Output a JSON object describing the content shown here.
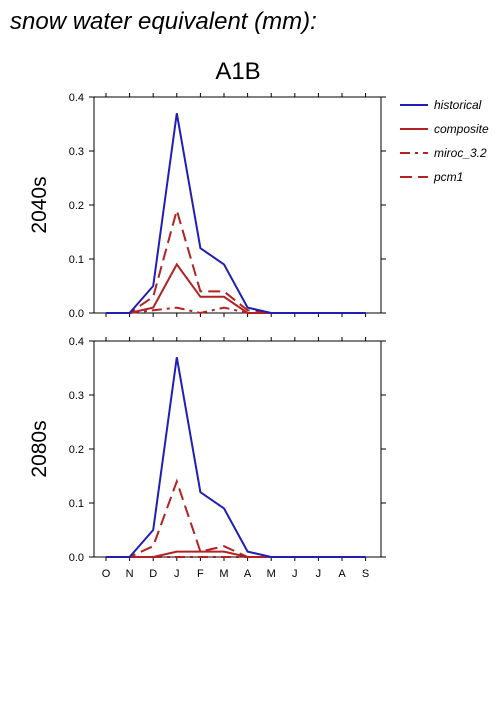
{
  "title": "snow water equivalent (mm):",
  "scenario": "A1B",
  "legend": {
    "items": [
      {
        "label": "historical",
        "color": "#1f1fb4",
        "dash": "solid"
      },
      {
        "label": "composite",
        "color": "#b22222",
        "dash": "solid"
      },
      {
        "label": "miroc_3.2",
        "color": "#b22222",
        "dash": "dashdot"
      },
      {
        "label": "pcm1",
        "color": "#b22222",
        "dash": "dash"
      }
    ]
  },
  "chart_data": [
    {
      "type": "line",
      "panel_label": "2040s",
      "categories": [
        "O",
        "N",
        "D",
        "J",
        "F",
        "M",
        "A",
        "M",
        "J",
        "J",
        "A",
        "S"
      ],
      "ylim": [
        0,
        0.4
      ],
      "yticks": [
        "0.0",
        "0.1",
        "0.2",
        "0.3",
        "0.4"
      ],
      "show_xticklabels": false,
      "series": [
        {
          "name": "historical",
          "color": "#1f1fb4",
          "dash": "solid",
          "values": [
            0,
            0,
            0.05,
            0.37,
            0.12,
            0.09,
            0.01,
            0,
            0,
            0,
            0,
            0
          ]
        },
        {
          "name": "composite",
          "color": "#b22222",
          "dash": "solid",
          "values": [
            0,
            0,
            0.01,
            0.09,
            0.03,
            0.03,
            0,
            0,
            0,
            0,
            0,
            0
          ]
        },
        {
          "name": "miroc_3.2",
          "color": "#b22222",
          "dash": "dashdot",
          "values": [
            0,
            0,
            0.005,
            0.01,
            0,
            0.01,
            0,
            0,
            0,
            0,
            0,
            0
          ]
        },
        {
          "name": "pcm1",
          "color": "#b22222",
          "dash": "dash",
          "values": [
            0,
            0,
            0.03,
            0.19,
            0.04,
            0.04,
            0.005,
            0,
            0,
            0,
            0,
            0
          ]
        }
      ]
    },
    {
      "type": "line",
      "panel_label": "2080s",
      "categories": [
        "O",
        "N",
        "D",
        "J",
        "F",
        "M",
        "A",
        "M",
        "J",
        "J",
        "A",
        "S"
      ],
      "ylim": [
        0,
        0.4
      ],
      "yticks": [
        "0.0",
        "0.1",
        "0.2",
        "0.3",
        "0.4"
      ],
      "show_xticklabels": true,
      "series": [
        {
          "name": "historical",
          "color": "#1f1fb4",
          "dash": "solid",
          "values": [
            0,
            0,
            0.05,
            0.37,
            0.12,
            0.09,
            0.01,
            0,
            0,
            0,
            0,
            0
          ]
        },
        {
          "name": "composite",
          "color": "#b22222",
          "dash": "solid",
          "values": [
            0,
            0,
            0,
            0.01,
            0.01,
            0.01,
            0,
            0,
            0,
            0,
            0,
            0
          ]
        },
        {
          "name": "miroc_3.2",
          "color": "#b22222",
          "dash": "dashdot",
          "values": [
            0,
            0,
            0,
            0,
            0,
            0,
            0,
            0,
            0,
            0,
            0,
            0
          ]
        },
        {
          "name": "pcm1",
          "color": "#b22222",
          "dash": "dash",
          "values": [
            0,
            0,
            0.02,
            0.14,
            0.01,
            0.02,
            0,
            0,
            0,
            0,
            0,
            0
          ]
        }
      ]
    }
  ]
}
